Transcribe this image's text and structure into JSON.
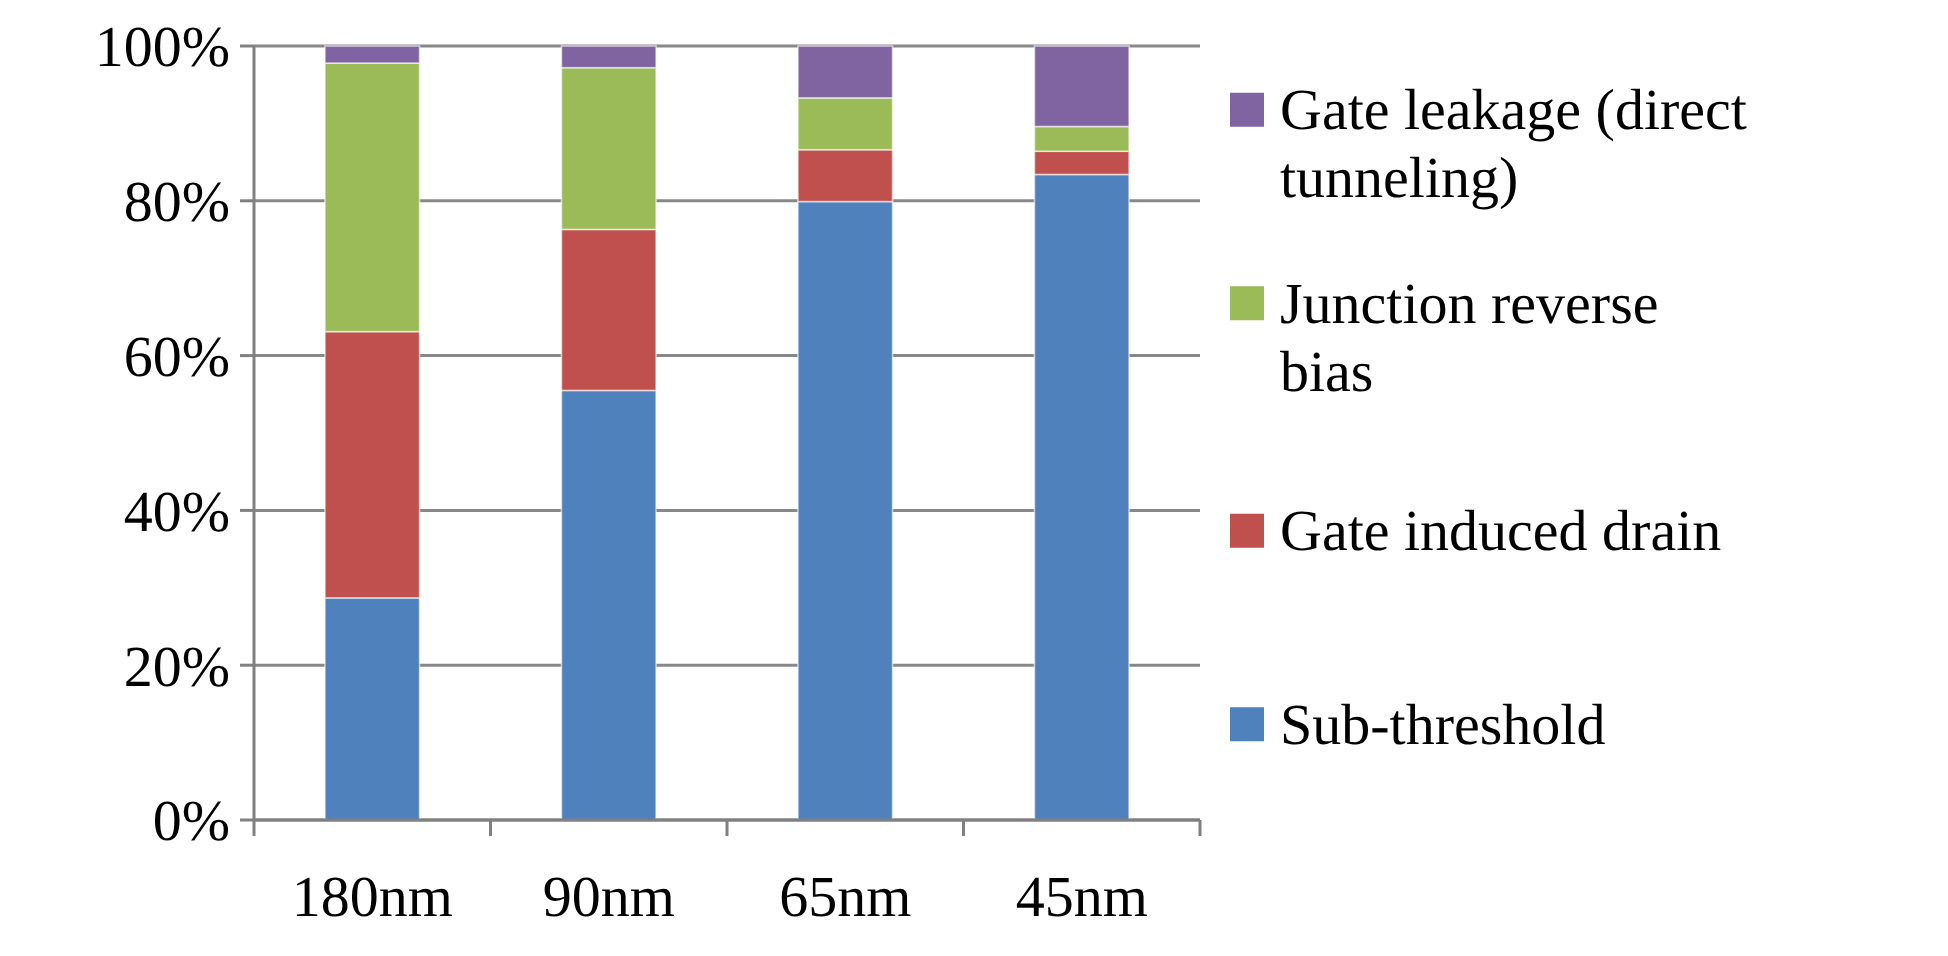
{
  "chart_data": {
    "type": "bar",
    "stacked": true,
    "categories": [
      "180nm",
      "90nm",
      "65nm",
      "45nm"
    ],
    "series": [
      {
        "name": "Sub-threshold",
        "color": "#4f81bd",
        "values": [
          28.7,
          55.5,
          79.9,
          83.4
        ]
      },
      {
        "name": "Gate induced drain",
        "color": "#c0504d",
        "values": [
          34.4,
          20.8,
          6.7,
          3.0
        ]
      },
      {
        "name": "Junction reverse bias",
        "color": "#9bbb59",
        "values": [
          34.7,
          20.9,
          6.7,
          3.2
        ]
      },
      {
        "name": "Gate leakage (direct tunneling)",
        "color": "#8064a2",
        "values": [
          2.2,
          2.8,
          6.7,
          10.4
        ]
      }
    ],
    "ylim": [
      0,
      100
    ],
    "yticks": [
      {
        "value": 0,
        "label": "0%"
      },
      {
        "value": 20,
        "label": "20%"
      },
      {
        "value": 40,
        "label": "40%"
      },
      {
        "value": 60,
        "label": "60%"
      },
      {
        "value": 80,
        "label": "80%"
      },
      {
        "value": 100,
        "label": "100%"
      }
    ],
    "grid": "y",
    "legend": "right"
  }
}
